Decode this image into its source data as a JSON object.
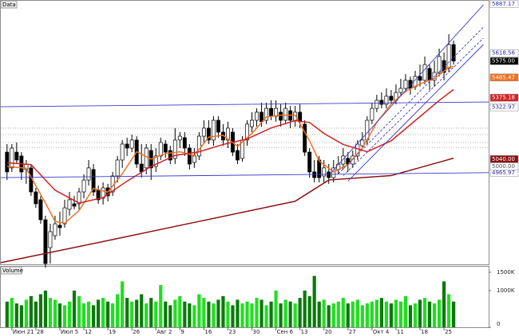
{
  "chart_data": {
    "type": "candlestick",
    "panel_label": "Data",
    "categories": [
      null,
      "Июн 21",
      null,
      null,
      null,
      null,
      "28",
      null,
      null,
      null,
      null,
      "Июл 5",
      null,
      null,
      null,
      null,
      "12",
      null,
      null,
      null,
      null,
      "19",
      null,
      null,
      null,
      null,
      "26",
      null,
      null,
      null,
      null,
      "Авг 2",
      null,
      null,
      null,
      null,
      "9",
      null,
      null,
      null,
      null,
      "16",
      null,
      null,
      null,
      null,
      "23",
      null,
      null,
      null,
      null,
      "30",
      null,
      null,
      null,
      null,
      "Сен 6",
      null,
      null,
      null,
      null,
      "13",
      null,
      null,
      null,
      null,
      "20",
      null,
      null,
      null,
      null,
      "27",
      null,
      null,
      null,
      null,
      "Окт 4",
      null,
      null,
      null,
      null,
      "11",
      null,
      null,
      null,
      null,
      "18",
      null,
      null,
      null,
      null,
      "25",
      null,
      null
    ],
    "open": [
      5078,
      4992,
      5078,
      5057,
      4983,
      4992,
      4861,
      4818,
      4709,
      4557,
      4622,
      4679,
      4687,
      4766,
      4796,
      4796,
      4861,
      4926,
      4983,
      4870,
      4826,
      4883,
      4861,
      4948,
      5035,
      5122,
      5100,
      5144,
      5013,
      4992,
      5087,
      5000,
      5057,
      5122,
      5087,
      5044,
      5144,
      5157,
      5100,
      5022,
      5057,
      5165,
      5209,
      5144,
      5252,
      5187,
      5144,
      5187,
      5087,
      5044,
      5144,
      5217,
      5252,
      5296,
      5252,
      5317,
      5274,
      5296,
      5252,
      5304,
      5252,
      5296,
      5231,
      5078,
      4970,
      5035,
      4948,
      4970,
      4939,
      4983,
      5013,
      5044,
      5013,
      5057,
      5113,
      5144,
      5252,
      5317,
      5361,
      5339,
      5383,
      5361,
      5404,
      5426,
      5470,
      5435,
      5491,
      5470,
      5535,
      5470,
      5513,
      5578,
      5535,
      5665
    ],
    "high": [
      5122,
      5122,
      5131,
      5078,
      5035,
      5013,
      4883,
      4839,
      4731,
      4687,
      4731,
      4753,
      4818,
      4861,
      4839,
      4883,
      4957,
      5035,
      5013,
      4896,
      4913,
      4905,
      4970,
      5057,
      5144,
      5157,
      5174,
      5165,
      5122,
      5122,
      5122,
      5100,
      5157,
      5144,
      5113,
      5209,
      5187,
      5187,
      5122,
      5100,
      5187,
      5252,
      5252,
      5274,
      5274,
      5231,
      5244,
      5209,
      5122,
      5165,
      5252,
      5296,
      5317,
      5348,
      5348,
      5361,
      5361,
      5339,
      5348,
      5330,
      5330,
      5339,
      5252,
      5100,
      5035,
      5057,
      5035,
      5013,
      5035,
      5057,
      5100,
      5078,
      5087,
      5144,
      5187,
      5274,
      5348,
      5391,
      5404,
      5426,
      5417,
      5448,
      5478,
      5504,
      5491,
      5522,
      5556,
      5600,
      5556,
      5578,
      5643,
      5622,
      5722,
      5687
    ],
    "low": [
      4926,
      4970,
      5013,
      4926,
      4905,
      4839,
      4774,
      4687,
      4448,
      4470,
      4600,
      4622,
      4666,
      4731,
      4766,
      4766,
      4826,
      4896,
      4839,
      4796,
      4792,
      4809,
      4839,
      4913,
      4992,
      5057,
      5078,
      4992,
      4939,
      4957,
      4926,
      4970,
      5035,
      5048,
      5013,
      5013,
      5100,
      5057,
      4983,
      4992,
      5035,
      5131,
      5122,
      5113,
      5157,
      5113,
      5100,
      5057,
      5013,
      5026,
      5113,
      5187,
      5217,
      5217,
      5231,
      5252,
      5244,
      5217,
      5231,
      5209,
      5217,
      5209,
      5057,
      4939,
      4913,
      4913,
      4913,
      4905,
      4913,
      4957,
      4983,
      4970,
      4992,
      5035,
      5100,
      5122,
      5231,
      5296,
      5317,
      5317,
      5339,
      5339,
      5383,
      5404,
      5391,
      5417,
      5435,
      5448,
      5417,
      5435,
      5491,
      5470,
      5513,
      5556
    ],
    "close": [
      4970,
      5100,
      5035,
      4970,
      5013,
      4861,
      4796,
      4709,
      4470,
      4644,
      4687,
      4666,
      4774,
      4818,
      4783,
      4861,
      4926,
      4992,
      4861,
      4818,
      4883,
      4839,
      4948,
      5035,
      5122,
      5100,
      5144,
      5013,
      4970,
      5100,
      4992,
      5057,
      5131,
      5078,
      5035,
      5144,
      5165,
      5100,
      5013,
      5057,
      5165,
      5209,
      5144,
      5252,
      5187,
      5144,
      5209,
      5078,
      5035,
      5144,
      5231,
      5252,
      5296,
      5244,
      5317,
      5274,
      5317,
      5252,
      5317,
      5252,
      5296,
      5244,
      5078,
      4970,
      4939,
      4939,
      4992,
      4939,
      4992,
      5013,
      5057,
      5013,
      5057,
      5122,
      5144,
      5252,
      5317,
      5361,
      5339,
      5383,
      5361,
      5404,
      5426,
      5470,
      5426,
      5491,
      5470,
      5556,
      5470,
      5513,
      5600,
      5513,
      5665,
      5575
    ],
    "up_color": "#ffffff",
    "down_color": "#000000",
    "outline_color": "#000000",
    "xlim": [
      -1.3,
      100.3
    ],
    "ylim": [
      4470,
      5904
    ],
    "levels": {
      "values": [
        5209,
        5174,
        5131,
        5104
      ],
      "color": "#9a9a9a"
    },
    "overlays": [
      {
        "color": "#f07020",
        "x": [
          0,
          4,
          8,
          10,
          12,
          15,
          18,
          21,
          24,
          27,
          30,
          33,
          36,
          39,
          42,
          45,
          48,
          51,
          54,
          57,
          60,
          63,
          65,
          68,
          71,
          74,
          77,
          80,
          83,
          86,
          89,
          92,
          93
        ],
        "values": [
          5000,
          4990,
          4800,
          4700,
          4690,
          4760,
          4880,
          4860,
          4960,
          5080,
          5040,
          5070,
          5080,
          5060,
          5160,
          5170,
          5110,
          5180,
          5270,
          5280,
          5280,
          5140,
          5030,
          4970,
          5010,
          5100,
          5240,
          5340,
          5410,
          5450,
          5480,
          5540,
          5545
        ]
      },
      {
        "color": "#d42020",
        "x": [
          0,
          5,
          10,
          15,
          20,
          25,
          30,
          35,
          40,
          45,
          50,
          55,
          60,
          63,
          66,
          70,
          75,
          80,
          85,
          90,
          93
        ],
        "values": [
          5020,
          5010,
          4870,
          4800,
          4830,
          4920,
          5000,
          5060,
          5080,
          5120,
          5150,
          5210,
          5250,
          5240,
          5180,
          5120,
          5080,
          5140,
          5250,
          5360,
          5420
        ]
      },
      {
        "color": "#8b1010",
        "x": [
          -1.3,
          20,
          40,
          60,
          67,
          80,
          93
        ],
        "values": [
          4475,
          4590,
          4700,
          4810,
          4926,
          4950,
          5045
        ]
      },
      {
        "color": "#3a3acf",
        "x": [
          -1.3,
          100.3
        ],
        "values": [
          5326,
          5352
        ]
      },
      {
        "color": "#3a3acf",
        "x": [
          -1.3,
          100.3
        ],
        "values": [
          4939,
          4966
        ]
      },
      {
        "color": "#3a3acf",
        "x": [
          67.6,
          99.2
        ],
        "values": [
          4970,
          5882
        ]
      },
      {
        "color": "#3a3acf",
        "x": [
          69,
          99.2
        ],
        "values": [
          4960,
          5760
        ],
        "dash": true
      },
      {
        "color": "#3a3acf",
        "x": [
          70,
          99.2
        ],
        "values": [
          4950,
          5700
        ],
        "dash": true
      },
      {
        "color": "#3a3acf",
        "x": [
          71,
          99.2
        ],
        "values": [
          4920,
          5665
        ]
      }
    ],
    "price_markers": [
      {
        "value": 5887.17,
        "label": "5887.17",
        "bg": "#ffffff",
        "fg": "#2a2ab0"
      },
      {
        "value": 5618.56,
        "label": "5618.56",
        "bg": "#ffffff",
        "fg": "#2a2ab0"
      },
      {
        "value": 5575,
        "label": "5575.00",
        "bg": "#000000",
        "fg": "#ffffff"
      },
      {
        "value": 5485.47,
        "label": "5485.47",
        "bg": "#f07020",
        "fg": "#ffffff"
      },
      {
        "value": 5375.18,
        "label": "5375.18",
        "bg": "#d42020",
        "fg": "#ffffff"
      },
      {
        "value": 5322.97,
        "label": "5322.97",
        "bg": "#ffffff",
        "fg": "#2a2ab0"
      },
      {
        "value": 5040,
        "label": "5040.00",
        "bg": "#8b1010",
        "fg": "#ffffff"
      },
      {
        "value": 4965.97,
        "label": "4965.97",
        "bg": "#ffffff",
        "fg": "#2a2ab0"
      },
      {
        "value": 5000,
        "label": "5000.00",
        "bg": "#ffffff",
        "fg": "#555555"
      }
    ],
    "volume": {
      "label": "Volume",
      "values": [
        700,
        800,
        650,
        600,
        750,
        850,
        700,
        900,
        1000,
        800,
        750,
        650,
        600,
        700,
        1000,
        850,
        650,
        700,
        600,
        750,
        800,
        700,
        650,
        900,
        1250,
        800,
        700,
        750,
        900,
        650,
        800,
        700,
        1150,
        700,
        600,
        750,
        850,
        700,
        650,
        600,
        900,
        800,
        700,
        650,
        750,
        850,
        700,
        600,
        750,
        650,
        700,
        650,
        800,
        750,
        600,
        700,
        1000,
        650,
        750,
        700,
        650,
        800,
        1000,
        850,
        1400,
        700,
        750,
        600,
        650,
        700,
        800,
        650,
        700,
        750,
        600,
        650,
        700,
        750,
        800,
        700,
        650,
        750,
        700,
        850,
        600,
        650,
        750,
        800,
        700,
        650,
        750,
        1250,
        900,
        700
      ],
      "up_color": "#22dd22",
      "down_color": "#0b7a0b",
      "ylim": [
        0,
        1650
      ],
      "yticks": [
        0,
        {
          "value": 1000,
          "label": "1000K"
        },
        {
          "value": 1500,
          "label": "1500K"
        }
      ]
    }
  }
}
